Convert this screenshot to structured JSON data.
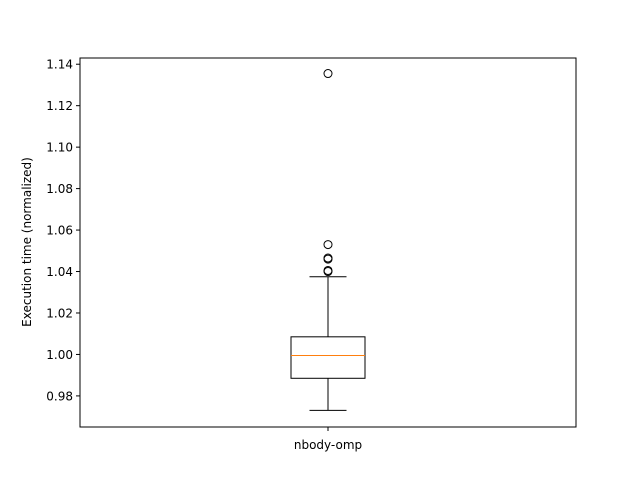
{
  "chart_data": {
    "type": "box",
    "categories": [
      "nbody-omp"
    ],
    "ylabel": "Execution time (normalized)",
    "xlabel": "",
    "title": "",
    "ylim": [
      0.965,
      1.143
    ],
    "yticks": [
      0.98,
      1.0,
      1.02,
      1.04,
      1.06,
      1.08,
      1.1,
      1.12,
      1.14
    ],
    "ytick_labels": [
      "0.98",
      "1.00",
      "1.02",
      "1.04",
      "1.06",
      "1.08",
      "1.10",
      "1.12",
      "1.14"
    ],
    "boxes": [
      {
        "category": "nbody-omp",
        "whisker_low": 0.973,
        "q1": 0.9885,
        "median": 0.9995,
        "q3": 1.0085,
        "whisker_high": 1.0375,
        "outliers": [
          1.04,
          1.0405,
          1.046,
          1.0465,
          1.053,
          1.1355
        ]
      }
    ],
    "colors": {
      "median": "#ff7f0e",
      "box": "#000000"
    },
    "grid": false,
    "legend": "none"
  }
}
